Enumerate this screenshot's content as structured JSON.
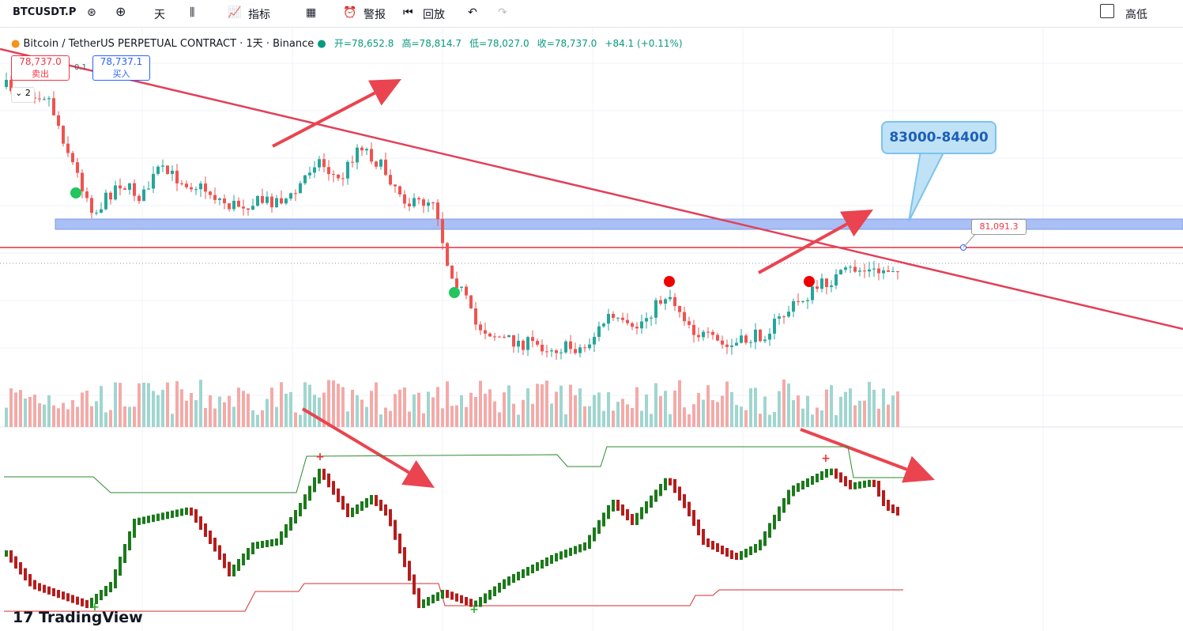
{
  "toolbar": {
    "symbol": "BTCUSDT.P",
    "interval": "天",
    "indicators": "指标",
    "alert": "警报",
    "replay": "回放",
    "right": "高低"
  },
  "legend": {
    "title": "Bitcoin / TetherUS PERPETUAL CONTRACT · 1天 · Binance",
    "open": "开=78,652.8",
    "high": "高=78,814.7",
    "low": "低=78,027.0",
    "close": "收=78,737.0",
    "change": "+84.1 (+0.11%)"
  },
  "trade": {
    "sell_price": "78,737.0",
    "sell": "卖出",
    "qty": "0.1",
    "buy_price": "78,737.1",
    "buy": "买入",
    "count": "2"
  },
  "annotations": {
    "callout": "83000-84400",
    "price_label": "81,091.3"
  },
  "brand": "TradingView"
}
